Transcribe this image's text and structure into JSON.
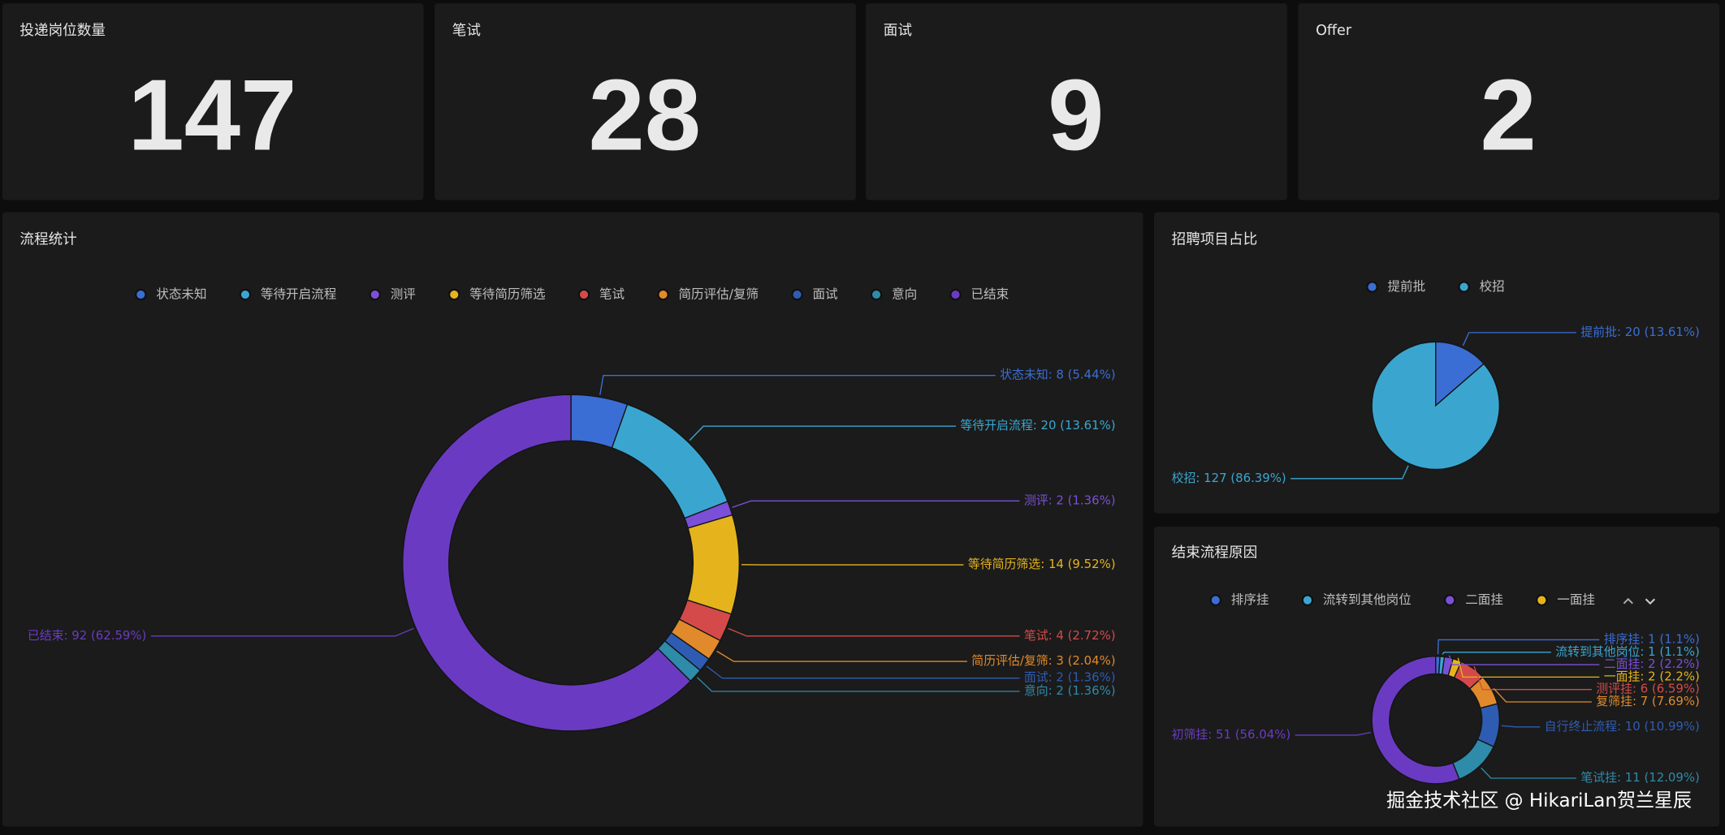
{
  "cards": [
    {
      "title": "投递岗位数量",
      "value": 147
    },
    {
      "title": "笔试",
      "value": 28
    },
    {
      "title": "面试",
      "value": 9
    },
    {
      "title": "Offer",
      "value": 2
    }
  ],
  "chart_data": [
    {
      "type": "donut",
      "title": "流程统计",
      "categories": [
        "状态未知",
        "等待开启流程",
        "测评",
        "等待简历筛选",
        "笔试",
        "简历评估/复筛",
        "面试",
        "意向",
        "已结束"
      ],
      "values": [
        8,
        20,
        2,
        14,
        4,
        3,
        2,
        2,
        92
      ],
      "value_labels": [
        "状态未知: 8 (5.44%)",
        "等待开启流程: 20 (13.61%)",
        "测评: 2 (1.36%)",
        "等待简历筛选: 14 (9.52%)",
        "笔试: 4 (2.72%)",
        "简历评估/复筛: 3 (2.04%)",
        "面试: 2 (1.36%)",
        "意向: 2 (1.36%)",
        "已结束: 92 (62.59%)"
      ],
      "colors": [
        "#3b6ed4",
        "#3aa6d0",
        "#7b4fd8",
        "#e5b41d",
        "#d44a4a",
        "#e08a2b",
        "#2f5cb3",
        "#2e8ba9",
        "#6a3bc2"
      ]
    },
    {
      "type": "pie",
      "title": "招聘项目占比",
      "categories": [
        "提前批",
        "校招"
      ],
      "values": [
        20,
        127
      ],
      "value_labels": [
        "提前批: 20 (13.61%)",
        "校招: 127 (86.39%)"
      ],
      "colors": [
        "#3b6ed4",
        "#3aa6d0"
      ]
    },
    {
      "type": "donut",
      "title": "结束流程原因",
      "categories": [
        "排序挂",
        "流转到其他岗位",
        "二面挂",
        "一面挂",
        "测评挂",
        "复筛挂",
        "自行终止流程",
        "笔试挂",
        "初筛挂"
      ],
      "values": [
        1,
        1,
        2,
        2,
        6,
        7,
        10,
        11,
        51
      ],
      "value_labels": [
        "排序挂: 1 (1.1%)",
        "流转到其他岗位: 1 (1.1%)",
        "二面挂: 2 (2.2%)",
        "一面挂: 2 (2.2%)",
        "测评挂: 6 (6.59%)",
        "复筛挂: 7 (7.69%)",
        "自行终止流程: 10 (10.99%)",
        "笔试挂: 11 (12.09%)",
        "初筛挂: 51 (56.04%)"
      ],
      "colors": [
        "#3b6ed4",
        "#3aa6d0",
        "#7b4fd8",
        "#e5b41d",
        "#d44a4a",
        "#e08a2b",
        "#2f5cb3",
        "#2e8ba9",
        "#6a3bc2"
      ]
    }
  ],
  "watermark": "掘金技术社区 @ HikariLan贺兰星辰"
}
